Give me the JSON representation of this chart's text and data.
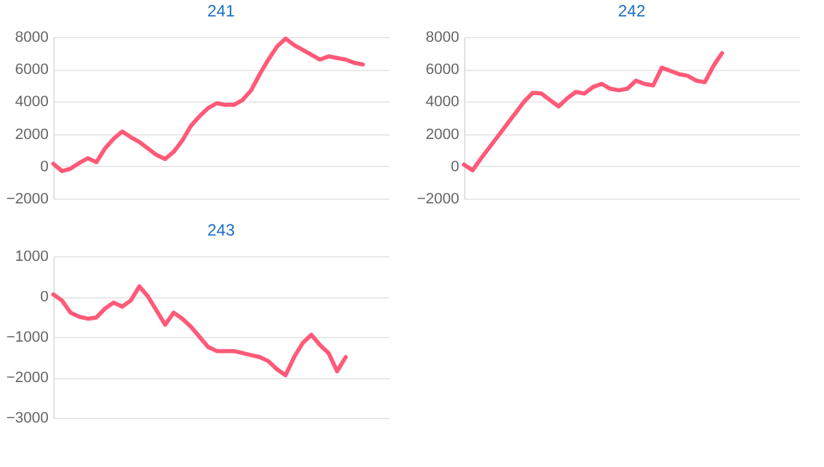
{
  "chart_data": [
    {
      "type": "line",
      "title": "241",
      "categories": [
        null,
        null,
        null,
        null,
        null,
        null,
        null,
        null,
        null,
        null,
        null,
        null,
        null,
        null,
        null,
        null,
        null,
        null,
        null,
        null,
        null,
        null,
        null,
        null,
        null,
        null,
        null,
        null,
        null,
        null,
        null,
        null,
        null,
        null,
        null,
        null,
        null,
        null,
        null,
        null
      ],
      "series": [
        {
          "color": "#ff5a78",
          "values": [
            150,
            -300,
            -150,
            200,
            500,
            250,
            1100,
            1700,
            2150,
            1800,
            1500,
            1100,
            700,
            450,
            900,
            1600,
            2500,
            3100,
            3600,
            3900,
            3800,
            3800,
            4100,
            4700,
            5700,
            6600,
            7400,
            7900,
            7500,
            7200,
            6900,
            6600,
            6800,
            6700,
            6600,
            6400,
            6300,
            null,
            null,
            null
          ]
        }
      ],
      "ylim": [
        -2000,
        8000
      ],
      "yticks": [
        -2000,
        0,
        2000,
        4000,
        6000,
        8000
      ],
      "grid": "y",
      "tick_labels": "y"
    },
    {
      "type": "line",
      "title": "242",
      "categories": [
        null,
        null,
        null,
        null,
        null,
        null,
        null,
        null,
        null,
        null,
        null,
        null,
        null,
        null,
        null,
        null,
        null,
        null,
        null,
        null,
        null,
        null,
        null,
        null,
        null,
        null,
        null,
        null,
        null,
        null,
        null,
        null,
        null,
        null,
        null,
        null,
        null,
        null,
        null,
        null
      ],
      "series": [
        {
          "color": "#ff5a78",
          "values": [
            100,
            -250,
            500,
            1200,
            1900,
            2600,
            3300,
            4000,
            4550,
            4500,
            4100,
            3700,
            4200,
            4600,
            4500,
            4900,
            5100,
            4800,
            4700,
            4800,
            5300,
            5100,
            5000,
            6100,
            5900,
            5700,
            5600,
            5300,
            5200,
            6200,
            7000,
            null,
            null,
            null,
            null,
            null,
            null,
            null,
            null,
            null
          ]
        }
      ],
      "ylim": [
        -2000,
        8000
      ],
      "yticks": [
        -2000,
        0,
        2000,
        4000,
        6000,
        8000
      ],
      "grid": "y",
      "tick_labels": "y"
    },
    {
      "type": "line",
      "title": "243",
      "categories": [
        null,
        null,
        null,
        null,
        null,
        null,
        null,
        null,
        null,
        null,
        null,
        null,
        null,
        null,
        null,
        null,
        null,
        null,
        null,
        null,
        null,
        null,
        null,
        null,
        null,
        null,
        null,
        null,
        null,
        null,
        null,
        null,
        null,
        null,
        null,
        null,
        null,
        null,
        null,
        null
      ],
      "series": [
        {
          "color": "#ff5a78",
          "values": [
            50,
            -100,
            -400,
            -500,
            -550,
            -520,
            -300,
            -150,
            -250,
            -100,
            250,
            0,
            -350,
            -700,
            -400,
            -550,
            -750,
            -1000,
            -1250,
            -1350,
            -1350,
            -1350,
            -1400,
            -1450,
            -1500,
            -1600,
            -1800,
            -1950,
            -1500,
            -1150,
            -950,
            -1200,
            -1400,
            -1850,
            -1500,
            null,
            null,
            null,
            null,
            null
          ]
        }
      ],
      "ylim": [
        -3000,
        1000
      ],
      "yticks": [
        -3000,
        -2000,
        -1000,
        0,
        1000
      ],
      "grid": "y",
      "tick_labels": "y"
    }
  ]
}
